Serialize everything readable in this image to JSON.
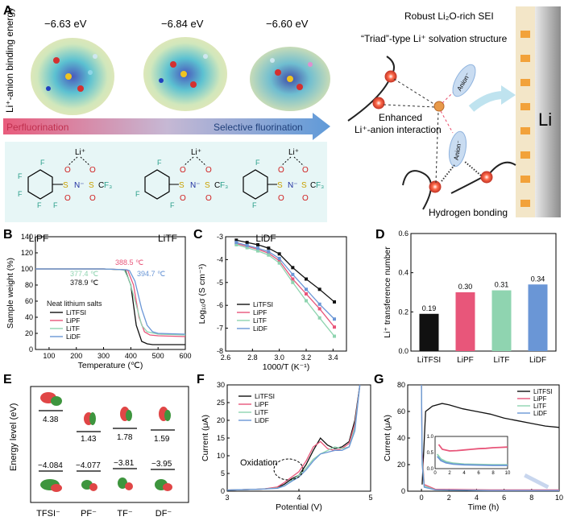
{
  "panels": {
    "A": {
      "letter": "A",
      "y_label": "Li⁺-anion binding energy",
      "energies": [
        "−6.63 eV",
        "−6.84 eV",
        "−6.60 eV"
      ],
      "arrow_left": "Perfluorination",
      "arrow_right": "Selective fluorination",
      "salts": [
        "LiPF",
        "LiTF",
        "LiDF"
      ],
      "sei_label": "Robust Li₂O-rich SEI",
      "triad_label": "“Triad”-type Li⁺ solvation structure",
      "enhanced_label_1": "Enhanced",
      "enhanced_label_2": "Li⁺-anion interaction",
      "hbond_label": "Hydrogen bonding",
      "anion": "Anion⁻",
      "li_metal": "Li",
      "chem": {
        "li": "Li⁺",
        "f": "F",
        "o": "O",
        "s": "S",
        "n": "N⁻",
        "cf3": "C",
        "f3": "F₃"
      }
    },
    "B": {
      "letter": "B",
      "legend_title": "Neat lithium salts",
      "annotations": [
        "388.5 ℃",
        "377.4 ℃",
        "378.9 ℃",
        "394.7 ℃"
      ]
    },
    "C": {
      "letter": "C"
    },
    "D": {
      "letter": "D"
    },
    "E": {
      "letter": "E",
      "ylabel": "Energy level (eV)",
      "anions": [
        "TFSI⁻",
        "PF⁻",
        "TF⁻",
        "DF⁻"
      ],
      "lumo": [
        "4.38",
        "1.43",
        "1.78",
        "1.59"
      ],
      "homo": [
        "−4.084",
        "−4.077",
        "−3.81",
        "−3.95"
      ]
    },
    "F": {
      "letter": "F",
      "oxidation_label": "Oxidation"
    },
    "G": {
      "letter": "G"
    }
  },
  "colors": {
    "LiTFSI": "#111111",
    "LiPF": "#e8567a",
    "LiTF": "#8fd4b0",
    "LiDF": "#6a96d6"
  },
  "chart_data": [
    {
      "id": "B",
      "type": "line",
      "xlabel": "Temperature (℃)",
      "ylabel": "Sample weight (%)",
      "xlim": [
        50,
        600
      ],
      "ylim": [
        0,
        140
      ],
      "xticks": [
        100,
        200,
        300,
        400,
        500,
        600
      ],
      "yticks": [
        0,
        20,
        40,
        60,
        80,
        100,
        120,
        140
      ],
      "series": [
        {
          "name": "LiTFSI",
          "x": [
            50,
            300,
            370,
            380,
            400,
            420,
            440,
            460,
            480,
            500,
            600
          ],
          "y": [
            100,
            100,
            99,
            98,
            80,
            30,
            10,
            7,
            6,
            6,
            6
          ]
        },
        {
          "name": "LiPF",
          "x": [
            50,
            300,
            380,
            389,
            410,
            430,
            450,
            470,
            500,
            600
          ],
          "y": [
            100,
            100,
            99,
            98,
            80,
            40,
            22,
            18,
            17,
            16
          ]
        },
        {
          "name": "LiTF",
          "x": [
            50,
            300,
            370,
            377,
            395,
            420,
            440,
            460,
            500,
            600
          ],
          "y": [
            100,
            100,
            99,
            98,
            85,
            55,
            30,
            22,
            19,
            18
          ]
        },
        {
          "name": "LiDF",
          "x": [
            50,
            300,
            385,
            395,
            415,
            440,
            460,
            480,
            500,
            600
          ],
          "y": [
            100,
            100,
            99,
            98,
            85,
            50,
            30,
            22,
            20,
            19
          ]
        }
      ]
    },
    {
      "id": "C",
      "type": "line",
      "xlabel": "1000/T (K⁻¹)",
      "ylabel": "Log₁₀σ (S cm⁻¹)",
      "xlim": [
        2.6,
        3.5
      ],
      "ylim": [
        -8,
        -3
      ],
      "xticks": [
        2.6,
        2.8,
        3.0,
        3.2,
        3.4
      ],
      "yticks": [
        -8,
        -7,
        -6,
        -5,
        -4,
        -3
      ],
      "series": [
        {
          "name": "LiTFSI",
          "x": [
            2.68,
            2.76,
            2.84,
            2.92,
            3.0,
            3.1,
            3.2,
            3.3,
            3.41
          ],
          "y": [
            -3.15,
            -3.25,
            -3.35,
            -3.5,
            -3.75,
            -4.35,
            -4.85,
            -5.3,
            -5.85
          ]
        },
        {
          "name": "LiPF",
          "x": [
            2.68,
            2.76,
            2.84,
            2.92,
            3.0,
            3.1,
            3.2,
            3.3,
            3.41
          ],
          "y": [
            -3.3,
            -3.42,
            -3.55,
            -3.72,
            -4.05,
            -4.85,
            -5.5,
            -6.15,
            -6.95
          ]
        },
        {
          "name": "LiTF",
          "x": [
            2.68,
            2.76,
            2.84,
            2.92,
            3.0,
            3.1,
            3.2,
            3.3,
            3.41
          ],
          "y": [
            -3.35,
            -3.48,
            -3.62,
            -3.8,
            -4.15,
            -5.0,
            -5.8,
            -6.55,
            -7.35
          ]
        },
        {
          "name": "LiDF",
          "x": [
            2.68,
            2.76,
            2.84,
            2.92,
            3.0,
            3.1,
            3.2,
            3.3,
            3.41
          ],
          "y": [
            -3.25,
            -3.38,
            -3.5,
            -3.65,
            -3.95,
            -4.65,
            -5.3,
            -5.95,
            -6.6
          ]
        }
      ]
    },
    {
      "id": "D",
      "type": "bar",
      "ylabel": "Li⁺ transference number",
      "categories": [
        "LiTFSI",
        "LiPF",
        "LiTF",
        "LiDF"
      ],
      "values": [
        0.19,
        0.3,
        0.31,
        0.34
      ],
      "value_labels": [
        "0.19",
        "0.30",
        "0.31",
        "0.34"
      ],
      "ylim": [
        0,
        0.6
      ],
      "yticks": [
        0.0,
        0.2,
        0.4,
        0.6
      ]
    },
    {
      "id": "F",
      "type": "line",
      "xlabel": "Potential (V)",
      "ylabel": "Current (μA)",
      "xlim": [
        3,
        5
      ],
      "ylim": [
        0,
        30
      ],
      "xticks": [
        3,
        4,
        5
      ],
      "yticks": [
        0,
        5,
        10,
        15,
        20,
        25,
        30
      ],
      "series": [
        {
          "name": "LiTFSI",
          "x": [
            3.0,
            3.5,
            3.7,
            3.8,
            3.9,
            4.0,
            4.1,
            4.2,
            4.3,
            4.4,
            4.5,
            4.6,
            4.7,
            4.78,
            4.85
          ],
          "y": [
            0.3,
            0.6,
            1.0,
            2.0,
            3.5,
            4.5,
            7.5,
            11.5,
            15.0,
            13.0,
            12.0,
            12.5,
            14.0,
            20.0,
            30.0
          ]
        },
        {
          "name": "LiPF",
          "x": [
            3.0,
            3.5,
            3.7,
            3.8,
            3.9,
            4.0,
            4.1,
            4.2,
            4.3,
            4.4,
            4.5,
            4.6,
            4.7,
            4.78,
            4.85
          ],
          "y": [
            0.3,
            0.6,
            1.2,
            2.5,
            4.0,
            5.5,
            8.5,
            12.5,
            14.0,
            12.0,
            11.5,
            12.0,
            13.5,
            19.0,
            30.0
          ]
        },
        {
          "name": "LiTF",
          "x": [
            3.0,
            3.5,
            3.7,
            3.8,
            3.9,
            4.0,
            4.1,
            4.2,
            4.3,
            4.4,
            4.5,
            4.6,
            4.7,
            4.78,
            4.85
          ],
          "y": [
            0.3,
            0.6,
            0.9,
            1.5,
            3.0,
            4.5,
            6.5,
            9.0,
            10.5,
            11.5,
            12.5,
            12.0,
            12.5,
            18.0,
            30.0
          ]
        },
        {
          "name": "LiDF",
          "x": [
            3.0,
            3.5,
            3.7,
            3.8,
            3.9,
            4.0,
            4.1,
            4.2,
            4.3,
            4.4,
            4.5,
            4.6,
            4.7,
            4.78,
            4.85
          ],
          "y": [
            0.3,
            0.6,
            0.8,
            1.5,
            2.8,
            4.0,
            6.0,
            8.5,
            10.5,
            11.0,
            11.5,
            11.5,
            12.5,
            17.0,
            30.0
          ]
        }
      ]
    },
    {
      "id": "G",
      "type": "line",
      "xlabel": "Time (h)",
      "ylabel": "Current (μA)",
      "xlim": [
        -1,
        10
      ],
      "ylim": [
        0,
        80
      ],
      "xticks": [
        0,
        2,
        4,
        6,
        8,
        10
      ],
      "yticks": [
        0,
        20,
        40,
        60,
        80
      ],
      "series": [
        {
          "name": "LiTFSI",
          "x": [
            0.05,
            0.3,
            0.8,
            1.5,
            2,
            3,
            4,
            5,
            6,
            7,
            8,
            9,
            10
          ],
          "y": [
            5,
            60,
            64,
            66,
            65,
            62,
            60,
            58,
            55,
            53,
            51,
            49,
            48
          ]
        },
        {
          "name": "LiPF",
          "x": [
            0,
            0.05,
            0.2,
            1,
            5,
            10
          ],
          "y": [
            80,
            30,
            5,
            1.5,
            1,
            1
          ]
        },
        {
          "name": "LiTF",
          "x": [
            0,
            0.05,
            0.2,
            1,
            5,
            10
          ],
          "y": [
            80,
            25,
            4,
            1,
            0.5,
            0.5
          ]
        },
        {
          "name": "LiDF",
          "x": [
            0,
            0.05,
            0.2,
            1,
            5,
            10
          ],
          "y": [
            80,
            20,
            3,
            1,
            0.5,
            0.5
          ]
        }
      ],
      "inset": {
        "xlim": [
          0,
          10
        ],
        "ylim": [
          0,
          1.0
        ],
        "xticks": [
          0,
          2,
          4,
          6,
          8,
          10
        ],
        "yticks": [
          0.0,
          0.5,
          1.0
        ],
        "series": [
          {
            "name": "LiPF",
            "x": [
              0.5,
              1,
              2,
              3,
              4,
              5,
              6,
              7,
              8,
              9,
              10
            ],
            "y": [
              0.75,
              0.6,
              0.55,
              0.56,
              0.58,
              0.6,
              0.62,
              0.63,
              0.65,
              0.66,
              0.67
            ]
          },
          {
            "name": "LiTF",
            "x": [
              0.3,
              0.8,
              1.5,
              2.5,
              4,
              6,
              8,
              10
            ],
            "y": [
              0.45,
              0.3,
              0.22,
              0.17,
              0.14,
              0.13,
              0.12,
              0.12
            ]
          },
          {
            "name": "LiDF",
            "x": [
              0.3,
              0.8,
              1.5,
              2.5,
              4,
              6,
              8,
              10
            ],
            "y": [
              0.38,
              0.25,
              0.18,
              0.14,
              0.12,
              0.11,
              0.1,
              0.1
            ]
          }
        ]
      }
    }
  ]
}
